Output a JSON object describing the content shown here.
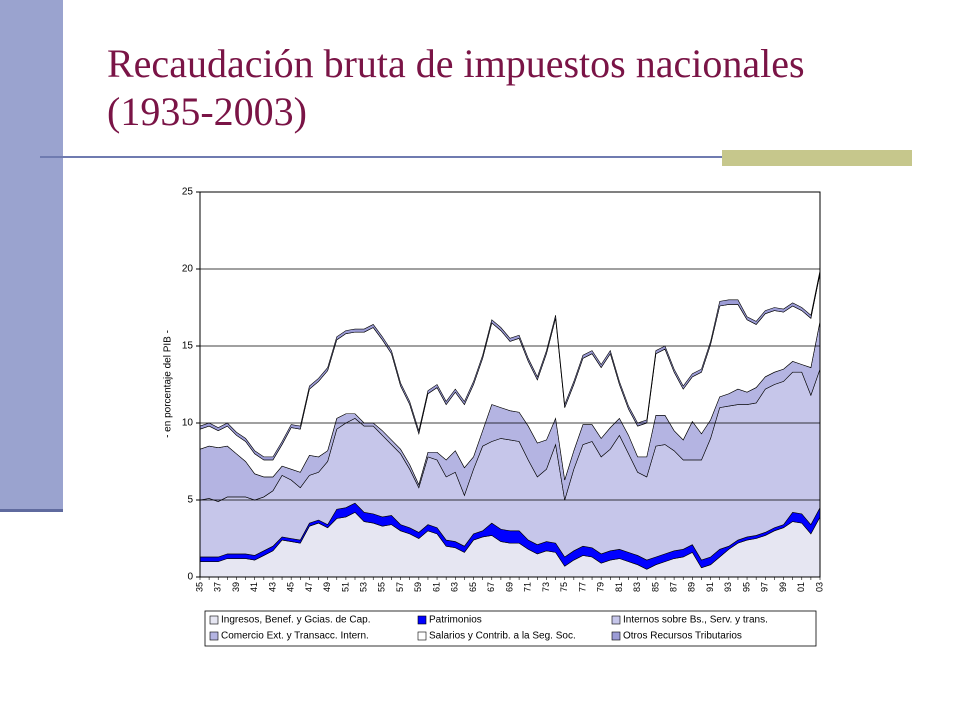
{
  "chart_data": {
    "type": "stacked_area",
    "title": "Recaudación bruta de impuestos nacionales (1935-2003)",
    "y_label": "- en porcentaje del PIB -",
    "categories": [
      "35",
      null,
      "37",
      null,
      "39",
      null,
      "41",
      null,
      "43",
      null,
      "45",
      null,
      "47",
      null,
      "49",
      null,
      "51",
      null,
      "53",
      null,
      "55",
      null,
      "57",
      null,
      "59",
      null,
      "61",
      null,
      "63",
      null,
      "65",
      null,
      "67",
      null,
      "69",
      null,
      "71",
      null,
      "73",
      null,
      "75",
      null,
      "77",
      null,
      "79",
      null,
      "81",
      null,
      "83",
      null,
      "85",
      null,
      "87",
      null,
      "89",
      null,
      "91",
      null,
      "93",
      null,
      "95",
      null,
      "97",
      null,
      "99",
      null,
      "01",
      null,
      "03"
    ],
    "ylim": [
      0,
      25
    ],
    "yticks": [
      0,
      5,
      10,
      15,
      20,
      25
    ],
    "grid": true,
    "series": [
      {
        "name": "Ingresos, Benef. y Gcias. de Cap.",
        "color": "#e6e6f2",
        "values": [
          1.0,
          1.0,
          1.0,
          1.2,
          1.2,
          1.2,
          1.1,
          1.4,
          1.7,
          2.4,
          2.3,
          2.2,
          3.3,
          3.5,
          3.2,
          3.8,
          3.9,
          4.2,
          3.6,
          3.5,
          3.3,
          3.4,
          3.0,
          2.8,
          2.5,
          3.0,
          2.8,
          2.0,
          1.9,
          1.6,
          2.4,
          2.6,
          2.7,
          2.3,
          2.2,
          2.2,
          1.8,
          1.5,
          1.7,
          1.6,
          0.7,
          1.1,
          1.4,
          1.3,
          0.9,
          1.1,
          1.2,
          1.0,
          0.8,
          0.5,
          0.8,
          1.0,
          1.2,
          1.3,
          1.6,
          0.6,
          0.8,
          1.3,
          1.8,
          2.2,
          2.4,
          2.5,
          2.7,
          3.0,
          3.2,
          3.6,
          3.5,
          2.8,
          3.9
        ]
      },
      {
        "name": "Patrimonios",
        "color": "#0000ff",
        "values": [
          0.3,
          0.3,
          0.3,
          0.3,
          0.3,
          0.3,
          0.3,
          0.3,
          0.3,
          0.2,
          0.2,
          0.2,
          0.2,
          0.2,
          0.2,
          0.6,
          0.6,
          0.6,
          0.6,
          0.6,
          0.6,
          0.6,
          0.4,
          0.4,
          0.4,
          0.4,
          0.4,
          0.4,
          0.4,
          0.4,
          0.4,
          0.4,
          0.8,
          0.8,
          0.8,
          0.8,
          0.6,
          0.6,
          0.6,
          0.6,
          0.6,
          0.6,
          0.6,
          0.6,
          0.6,
          0.6,
          0.6,
          0.6,
          0.6,
          0.6,
          0.5,
          0.5,
          0.5,
          0.5,
          0.5,
          0.5,
          0.5,
          0.5,
          0.2,
          0.2,
          0.2,
          0.2,
          0.2,
          0.2,
          0.2,
          0.6,
          0.6,
          0.6,
          0.6
        ]
      },
      {
        "name": "Internos sobre Bs., Serv. y trans.",
        "color": "#c6c6ea",
        "values": [
          3.7,
          3.8,
          3.6,
          3.7,
          3.7,
          3.7,
          3.6,
          3.5,
          3.6,
          4.0,
          3.8,
          3.4,
          3.1,
          3.1,
          4.1,
          5.2,
          5.5,
          5.5,
          5.6,
          5.7,
          5.3,
          4.6,
          4.6,
          3.8,
          2.9,
          4.4,
          4.4,
          4.1,
          4.5,
          3.3,
          4.2,
          5.5,
          5.3,
          5.9,
          5.9,
          5.8,
          5.2,
          4.4,
          4.7,
          6.4,
          3.7,
          5.3,
          6.6,
          6.9,
          6.3,
          6.6,
          7.4,
          6.4,
          5.4,
          5.4,
          7.2,
          7.1,
          6.5,
          5.8,
          5.5,
          6.5,
          7.7,
          9.2,
          9.1,
          8.8,
          8.6,
          8.6,
          9.3,
          9.3,
          9.3,
          9.1,
          9.2,
          8.4,
          9.0
        ]
      },
      {
        "name": "Comercio Ext. y Transacc. Intern.",
        "color": "#b4b4e2",
        "values": [
          3.3,
          3.4,
          3.5,
          3.3,
          2.8,
          2.3,
          1.7,
          1.3,
          0.9,
          0.6,
          0.7,
          1.0,
          1.3,
          1.0,
          0.7,
          0.7,
          0.6,
          0.3,
          0.2,
          0.2,
          0.3,
          0.3,
          0.3,
          0.3,
          0.2,
          0.3,
          0.5,
          1.1,
          1.4,
          1.8,
          0.8,
          1.0,
          2.4,
          2.0,
          1.9,
          1.9,
          2.2,
          2.2,
          1.9,
          1.7,
          1.3,
          1.2,
          1.3,
          1.1,
          1.2,
          1.4,
          1.1,
          1.2,
          1.0,
          1.3,
          2.0,
          1.9,
          1.3,
          1.3,
          2.5,
          1.7,
          1.2,
          0.7,
          0.8,
          1.0,
          0.8,
          1.0,
          0.8,
          0.8,
          0.8,
          0.7,
          0.5,
          1.8,
          3.1
        ]
      },
      {
        "name": "Salarios y Contrib. a la Seg. Soc.",
        "color": "#ffffff",
        "values": [
          1.3,
          1.3,
          1.1,
          1.3,
          1.2,
          1.3,
          1.3,
          1.1,
          1.1,
          1.4,
          2.7,
          2.8,
          4.3,
          4.9,
          5.2,
          5.1,
          5.2,
          5.3,
          5.9,
          6.2,
          5.9,
          5.6,
          4.1,
          3.9,
          3.3,
          3.8,
          4.2,
          3.6,
          3.8,
          4.1,
          4.7,
          4.7,
          5.3,
          5.0,
          4.5,
          4.8,
          4.2,
          4.1,
          5.6,
          6.5,
          4.7,
          4.3,
          4.3,
          4.6,
          4.6,
          4.8,
          2.2,
          1.7,
          2.0,
          2.2,
          4.0,
          4.3,
          3.8,
          3.3,
          2.9,
          4.0,
          4.9,
          5.9,
          5.8,
          5.5,
          4.7,
          4.1,
          4.1,
          4.0,
          3.7,
          3.6,
          3.5,
          3.2,
          3.1
        ]
      },
      {
        "name": "Otros Recursos Tributarios",
        "color": "#9c9cd6",
        "values": [
          0.2,
          0.2,
          0.2,
          0.2,
          0.2,
          0.2,
          0.2,
          0.2,
          0.2,
          0.2,
          0.2,
          0.2,
          0.2,
          0.2,
          0.2,
          0.2,
          0.2,
          0.2,
          0.2,
          0.2,
          0.2,
          0.2,
          0.2,
          0.2,
          0.2,
          0.2,
          0.2,
          0.2,
          0.2,
          0.2,
          0.2,
          0.2,
          0.2,
          0.2,
          0.2,
          0.2,
          0.2,
          0.2,
          0.2,
          0.2,
          0.2,
          0.2,
          0.2,
          0.2,
          0.2,
          0.2,
          0.2,
          0.2,
          0.2,
          0.2,
          0.2,
          0.2,
          0.2,
          0.2,
          0.2,
          0.2,
          0.2,
          0.3,
          0.3,
          0.3,
          0.2,
          0.2,
          0.2,
          0.2,
          0.2,
          0.2,
          0.2,
          0.2,
          0.2
        ]
      }
    ]
  }
}
